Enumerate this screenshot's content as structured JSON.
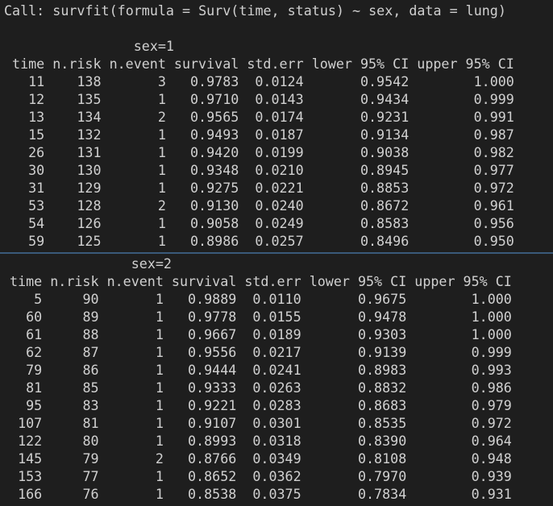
{
  "call": "Call: survfit(formula = Surv(time, status) ~ sex, data = lung)",
  "tables": [
    {
      "group": "sex=1",
      "header": [
        "time",
        "n.risk",
        "n.event",
        "survival",
        "std.err",
        "lower 95% CI",
        "upper 95% CI"
      ],
      "rows": [
        [
          "11",
          "138",
          "3",
          "0.9783",
          "0.0124",
          "0.9542",
          "1.000"
        ],
        [
          "12",
          "135",
          "1",
          "0.9710",
          "0.0143",
          "0.9434",
          "0.999"
        ],
        [
          "13",
          "134",
          "2",
          "0.9565",
          "0.0174",
          "0.9231",
          "0.991"
        ],
        [
          "15",
          "132",
          "1",
          "0.9493",
          "0.0187",
          "0.9134",
          "0.987"
        ],
        [
          "26",
          "131",
          "1",
          "0.9420",
          "0.0199",
          "0.9038",
          "0.982"
        ],
        [
          "30",
          "130",
          "1",
          "0.9348",
          "0.0210",
          "0.8945",
          "0.977"
        ],
        [
          "31",
          "129",
          "1",
          "0.9275",
          "0.0221",
          "0.8853",
          "0.972"
        ],
        [
          "53",
          "128",
          "2",
          "0.9130",
          "0.0240",
          "0.8672",
          "0.961"
        ],
        [
          "54",
          "126",
          "1",
          "0.9058",
          "0.0249",
          "0.8583",
          "0.956"
        ],
        [
          "59",
          "125",
          "1",
          "0.8986",
          "0.0257",
          "0.8496",
          "0.950"
        ]
      ]
    },
    {
      "group": "sex=2",
      "header": [
        "time",
        "n.risk",
        "n.event",
        "survival",
        "std.err",
        "lower 95% CI",
        "upper 95% CI"
      ],
      "rows": [
        [
          "5",
          "90",
          "1",
          "0.9889",
          "0.0110",
          "0.9675",
          "1.000"
        ],
        [
          "60",
          "89",
          "1",
          "0.9778",
          "0.0155",
          "0.9478",
          "1.000"
        ],
        [
          "61",
          "88",
          "1",
          "0.9667",
          "0.0189",
          "0.9303",
          "1.000"
        ],
        [
          "62",
          "87",
          "1",
          "0.9556",
          "0.0217",
          "0.9139",
          "0.999"
        ],
        [
          "79",
          "86",
          "1",
          "0.9444",
          "0.0241",
          "0.8983",
          "0.993"
        ],
        [
          "81",
          "85",
          "1",
          "0.9333",
          "0.0263",
          "0.8832",
          "0.986"
        ],
        [
          "95",
          "83",
          "1",
          "0.9221",
          "0.0283",
          "0.8683",
          "0.979"
        ],
        [
          "107",
          "81",
          "1",
          "0.9107",
          "0.0301",
          "0.8535",
          "0.972"
        ],
        [
          "122",
          "80",
          "1",
          "0.8993",
          "0.0318",
          "0.8390",
          "0.964"
        ],
        [
          "145",
          "79",
          "2",
          "0.8766",
          "0.0349",
          "0.8108",
          "0.948"
        ],
        [
          "153",
          "77",
          "1",
          "0.8652",
          "0.0362",
          "0.7970",
          "0.939"
        ],
        [
          "166",
          "76",
          "1",
          "0.8538",
          "0.0375",
          "0.7834",
          "0.931"
        ]
      ]
    }
  ]
}
